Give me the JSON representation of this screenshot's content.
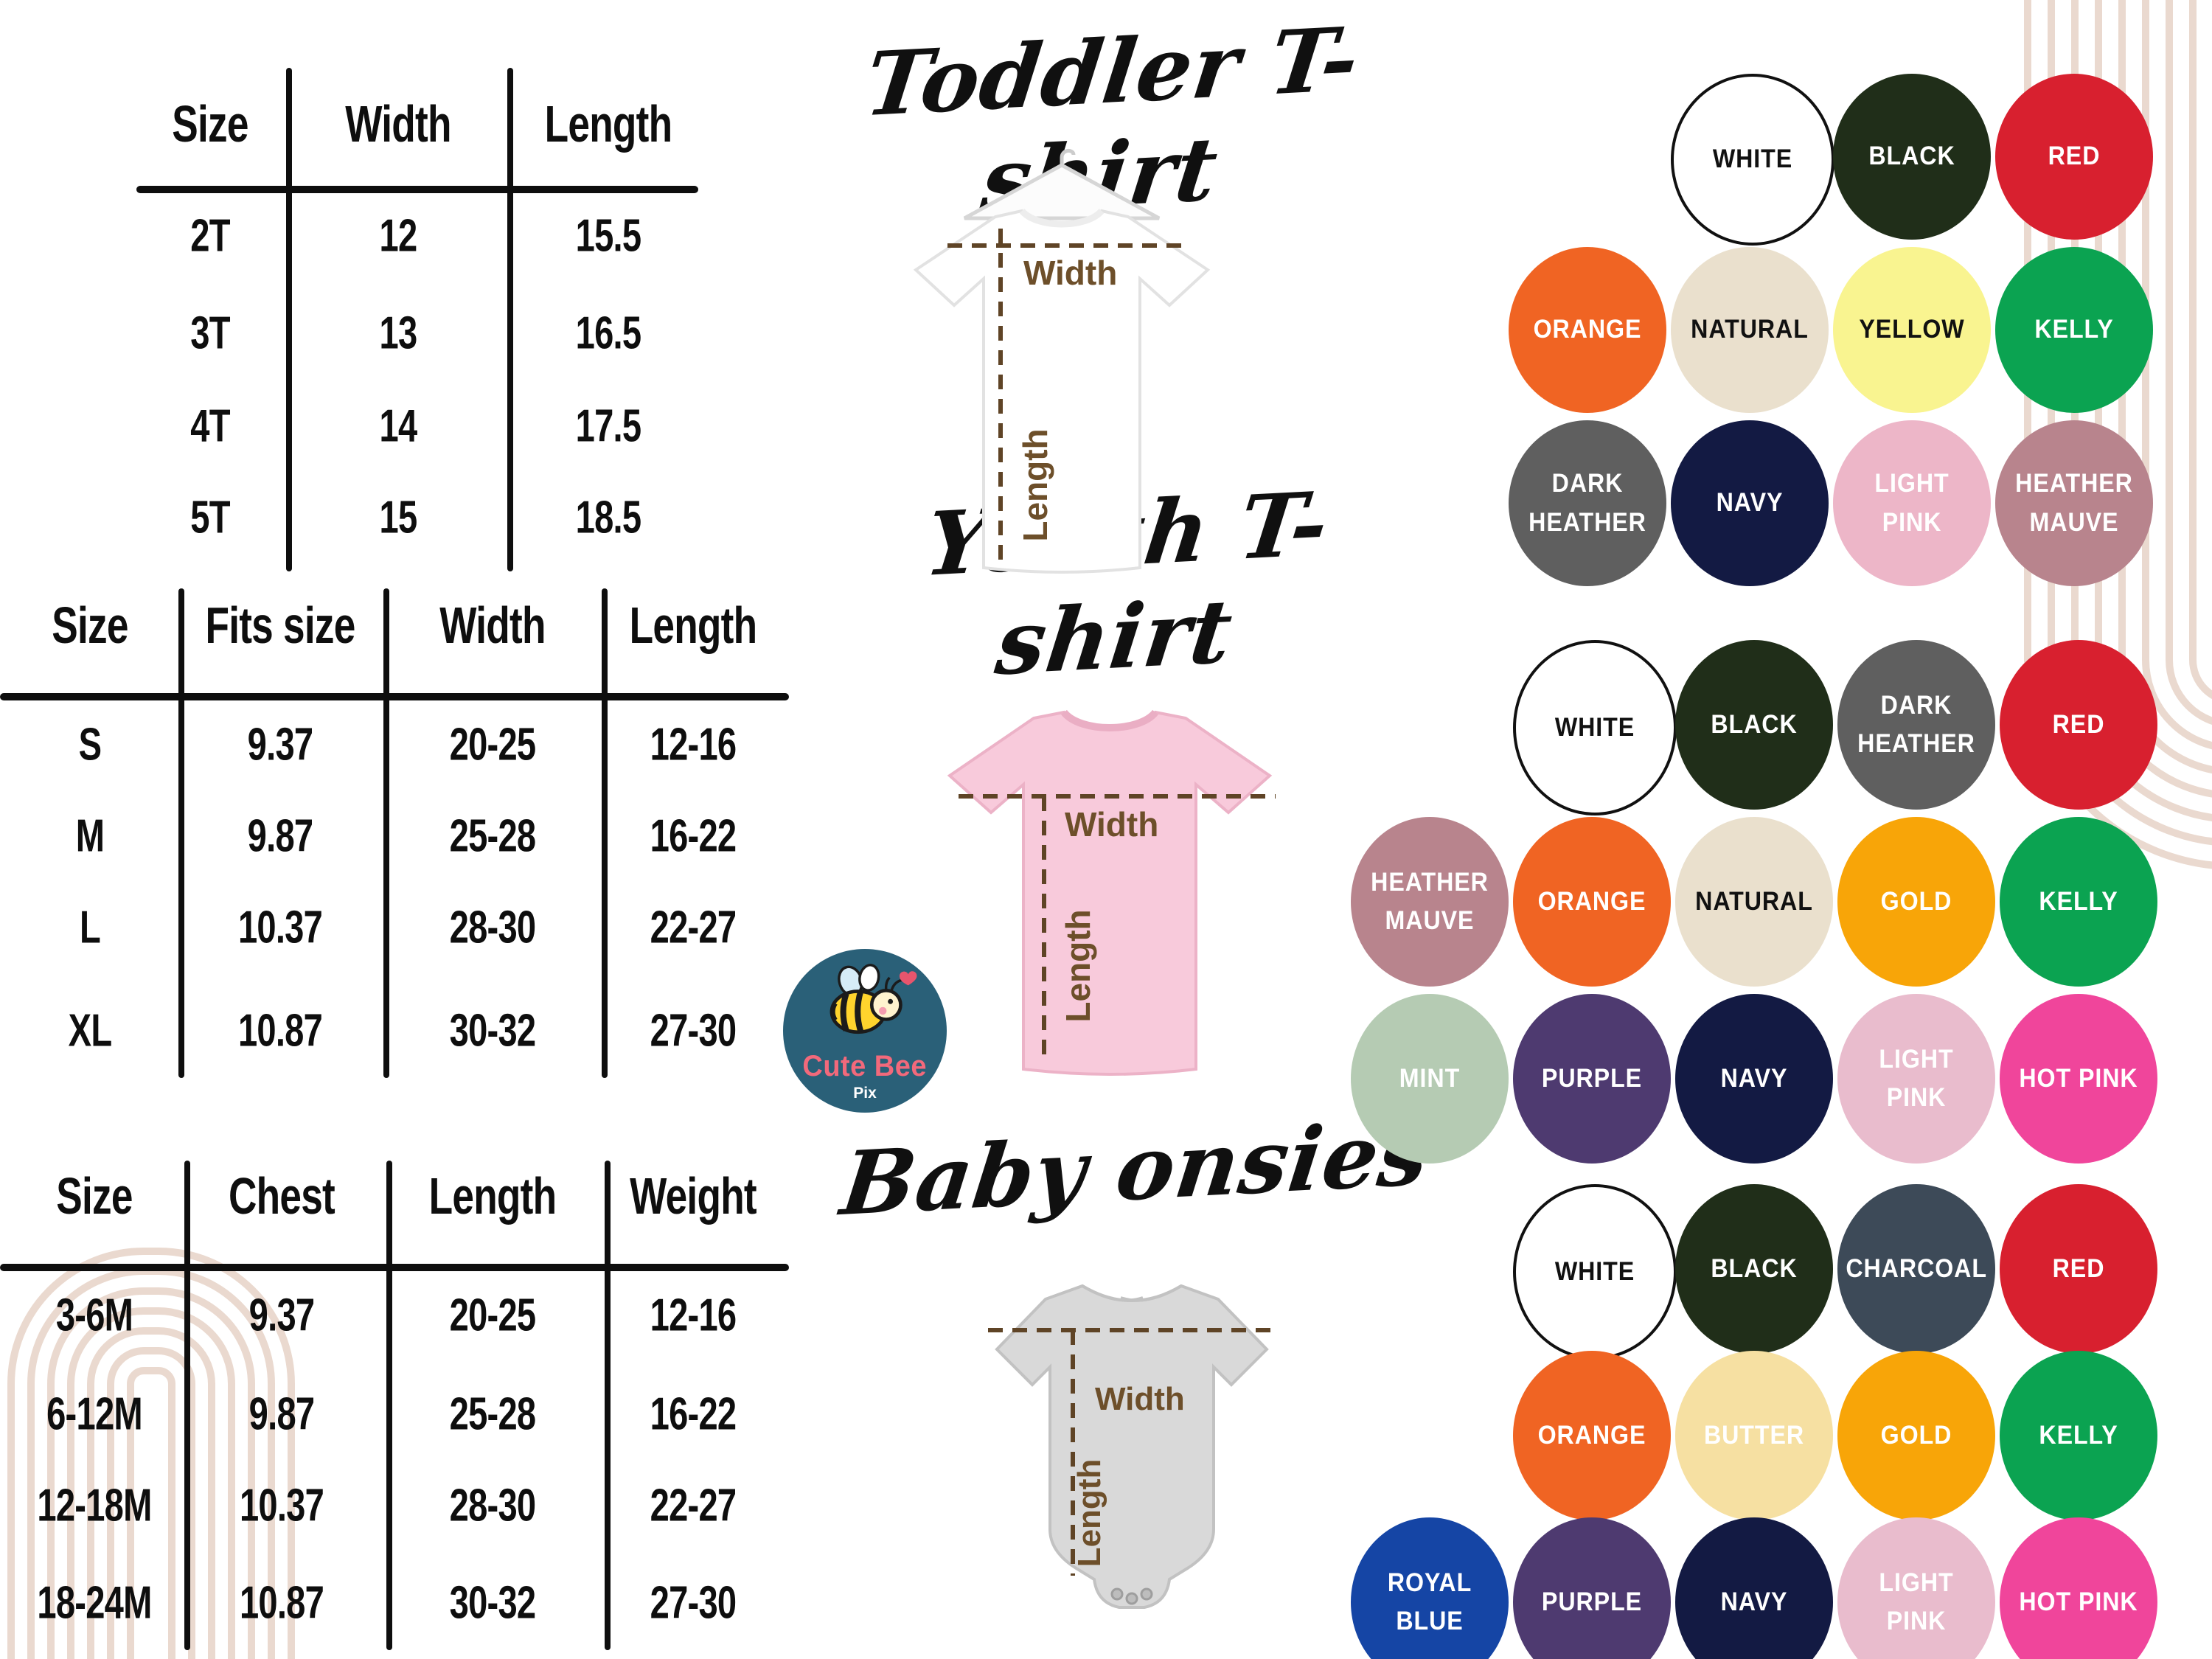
{
  "titles": {
    "toddler": "Toddler T-shirt",
    "youth": "Youth T-shirt",
    "baby": "Baby onsies"
  },
  "measure_labels": {
    "width": "Width",
    "length": "Length"
  },
  "logo": {
    "name": "Cute Bee",
    "sub": "Pix"
  },
  "tables": [
    {
      "id": "toddler-size-table",
      "headers": [
        "Size",
        "Width",
        "Length"
      ],
      "rows": [
        [
          "2T",
          "12",
          "15.5"
        ],
        [
          "3T",
          "13",
          "16.5"
        ],
        [
          "4T",
          "14",
          "17.5"
        ],
        [
          "5T",
          "15",
          "18.5"
        ]
      ]
    },
    {
      "id": "youth-size-table",
      "headers": [
        "Size",
        "Fits size",
        "Width",
        "Length"
      ],
      "rows": [
        [
          "S",
          "9.37",
          "20-25",
          "12-16"
        ],
        [
          "M",
          "9.87",
          "25-28",
          "16-22"
        ],
        [
          "L",
          "10.37",
          "28-30",
          "22-27"
        ],
        [
          "XL",
          "10.87",
          "30-32",
          "27-30"
        ]
      ]
    },
    {
      "id": "baby-size-table",
      "headers": [
        "Size",
        "Chest",
        "Length",
        "Weight"
      ],
      "rows": [
        [
          "3-6M",
          "9.37",
          "20-25",
          "12-16"
        ],
        [
          "6-12M",
          "9.87",
          "25-28",
          "16-22"
        ],
        [
          "12-18M",
          "10.37",
          "28-30",
          "22-27"
        ],
        [
          "18-24M",
          "10.87",
          "30-32",
          "27-30"
        ]
      ]
    }
  ],
  "swatch_grids": [
    {
      "id": "toddler-colors",
      "rows": [
        [
          {
            "label": "WHITE",
            "hex": "#ffffff",
            "text": "#111111",
            "border": "#111111"
          },
          {
            "label": "BLACK",
            "hex": "#202e19",
            "text": "#ffffff"
          },
          {
            "label": "RED",
            "hex": "#d8202f",
            "text": "#ffffff"
          }
        ],
        [
          {
            "label": "ORANGE",
            "hex": "#f06423",
            "text": "#ffffff"
          },
          {
            "label": "NATURAL",
            "hex": "#eae0cd",
            "text": "#111111"
          },
          {
            "label": "YELLOW",
            "hex": "#f9f490",
            "text": "#111111"
          },
          {
            "label": "KELLY",
            "hex": "#0ba351",
            "text": "#ffffff"
          }
        ],
        [
          {
            "label": "DARK HEATHER",
            "hex": "#5f5f5f",
            "text": "#ffffff"
          },
          {
            "label": "NAVY",
            "hex": "#131a43",
            "text": "#ffffff"
          },
          {
            "label": "LIGHT PINK",
            "hex": "#edb6c8",
            "text": "#ffffff"
          },
          {
            "label": "HEATHER MAUVE",
            "hex": "#b8848d",
            "text": "#ffffff"
          }
        ]
      ]
    },
    {
      "id": "youth-colors",
      "rows": [
        [
          {
            "label": "WHITE",
            "hex": "#ffffff",
            "text": "#111111",
            "border": "#111111"
          },
          {
            "label": "BLACK",
            "hex": "#202e19",
            "text": "#ffffff"
          },
          {
            "label": "DARK HEATHER",
            "hex": "#5f5f5f",
            "text": "#ffffff"
          },
          {
            "label": "RED",
            "hex": "#d8202f",
            "text": "#ffffff"
          }
        ],
        [
          {
            "label": "HEATHER MAUVE",
            "hex": "#b8848d",
            "text": "#ffffff"
          },
          {
            "label": "ORANGE",
            "hex": "#f06423",
            "text": "#ffffff"
          },
          {
            "label": "NATURAL",
            "hex": "#eae0cd",
            "text": "#111111"
          },
          {
            "label": "GOLD",
            "hex": "#f8a508",
            "text": "#ffffff"
          },
          {
            "label": "KELLY",
            "hex": "#0ba351",
            "text": "#ffffff"
          }
        ],
        [
          {
            "label": "MINT",
            "hex": "#b5cbb3",
            "text": "#ffffff"
          },
          {
            "label": "PURPLE",
            "hex": "#4e3a70",
            "text": "#ffffff"
          },
          {
            "label": "NAVY",
            "hex": "#131a43",
            "text": "#ffffff"
          },
          {
            "label": "LIGHT PINK",
            "hex": "#e9bccd",
            "text": "#ffffff"
          },
          {
            "label": "HOT PINK",
            "hex": "#f0459b",
            "text": "#ffffff"
          }
        ]
      ]
    },
    {
      "id": "baby-onesie-colors",
      "rows": [
        [
          {
            "label": "WHITE",
            "hex": "#ffffff",
            "text": "#111111",
            "border": "#111111"
          },
          {
            "label": "BLACK",
            "hex": "#202e19",
            "text": "#ffffff"
          },
          {
            "label": "CHARCOAL",
            "hex": "#3d4a58",
            "text": "#ffffff"
          },
          {
            "label": "RED",
            "hex": "#d8202f",
            "text": "#ffffff"
          }
        ],
        [
          {
            "label": "ORANGE",
            "hex": "#f06423",
            "text": "#ffffff"
          },
          {
            "label": "BUTTER",
            "hex": "#f6e0a2",
            "text": "#ffffff"
          },
          {
            "label": "GOLD",
            "hex": "#f8a508",
            "text": "#ffffff"
          },
          {
            "label": "KELLY",
            "hex": "#0ba351",
            "text": "#ffffff"
          }
        ],
        [
          {
            "label": "ROYAL BLUE",
            "hex": "#1545a5",
            "text": "#ffffff"
          },
          {
            "label": "PURPLE",
            "hex": "#4e3a70",
            "text": "#ffffff"
          },
          {
            "label": "NAVY",
            "hex": "#131a43",
            "text": "#ffffff"
          },
          {
            "label": "LIGHT PINK",
            "hex": "#e9bccd",
            "text": "#ffffff"
          },
          {
            "label": "HOT PINK",
            "hex": "#f0459b",
            "text": "#ffffff"
          }
        ]
      ]
    }
  ],
  "garments": {
    "toddler_shirt_color": "#ffffff",
    "toddler_shirt_stroke": "#e2e2e2",
    "youth_shirt_color": "#f8cadb",
    "youth_shirt_stroke": "#ecb2c7",
    "baby_onesie_color": "#d9d9d9",
    "baby_onesie_stroke": "#c2c2c2"
  },
  "decor": {
    "dash_color": "#5f4426",
    "measure_text_color": "#6d4f2a",
    "arc_color": "#ead9cf",
    "logo_bg": "#2a6078",
    "logo_title_color": "#f2697b",
    "table_ink": "#0e0e0e"
  }
}
